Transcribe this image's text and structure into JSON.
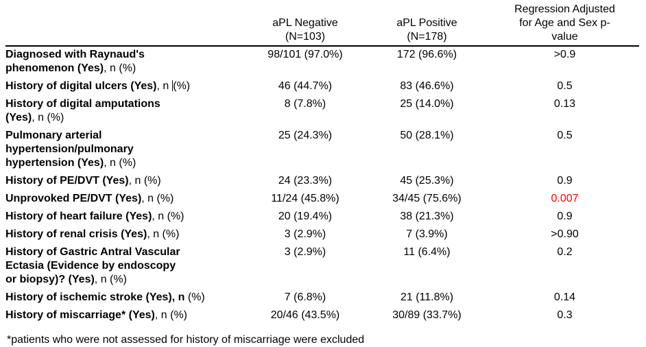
{
  "colors": {
    "text": "#000000",
    "p_significant": "#ff0000",
    "rule": "#000000"
  },
  "table": {
    "header": {
      "col1": "",
      "col2": "aPL Negative\n(N=103)",
      "col3": "aPL Positive\n(N=178)",
      "col4": "Regression Adjusted\nfor Age and Sex p-\nvalue"
    },
    "rows": [
      {
        "label_bold": "Diagnosed with Raynaud's\nphenomenon (Yes)",
        "label_tail": ", n (%)",
        "apl_negative": "98/101 (97.0%)",
        "apl_positive": "172 (96.6%)",
        "p_value": ">0.9",
        "significant": false
      },
      {
        "label_bold": "History of digital ulcers (Yes)",
        "label_tail": ", n ",
        "cursor": true,
        "label_tail2": "(%)",
        "apl_negative": "46 (44.7%)",
        "apl_positive": "83 (46.6%)",
        "p_value": "0.5",
        "significant": false
      },
      {
        "label_bold": "History of digital amputations\n(Yes)",
        "label_tail": ", n (%)",
        "apl_negative": "8 (7.8%)",
        "apl_positive": "25 (14.0%)",
        "p_value": "0.13",
        "significant": false
      },
      {
        "label_bold": "Pulmonary arterial\nhypertension/pulmonary\nhypertension (Yes)",
        "label_tail": ", n (%)",
        "apl_negative": "25 (24.3%)",
        "apl_positive": "50 (28.1%)",
        "p_value": "0.5",
        "significant": false
      },
      {
        "label_bold": "History of PE/DVT (Yes)",
        "label_tail": ", n (%)",
        "apl_negative": "24 (23.3%)",
        "apl_positive": "45 (25.3%)",
        "p_value": "0.9",
        "significant": false
      },
      {
        "label_bold": "Unprovoked PE/DVT (Yes)",
        "label_tail": ", n (%)",
        "apl_negative": "11/24 (45.8%)",
        "apl_positive": "34/45 (75.6%)",
        "p_value": "0.007",
        "significant": true
      },
      {
        "label_bold": "History of heart failure (Yes)",
        "label_tail": ", n (%)",
        "apl_negative": "20 (19.4%)",
        "apl_positive": "38 (21.3%)",
        "p_value": "0.9",
        "significant": false
      },
      {
        "label_bold": "History of renal crisis (Yes)",
        "label_tail": ", n (%)",
        "apl_negative": "3 (2.9%)",
        "apl_positive": "7 (3.9%)",
        "p_value": ">0.90",
        "significant": false
      },
      {
        "label_bold": "History of Gastric Antral Vascular\nEctasia (Evidence by endoscopy\nor biopsy)? (Yes)",
        "label_tail": ", n (%)",
        "apl_negative": "3 (2.9%)",
        "apl_positive": "11 (6.4%)",
        "p_value": "0.2",
        "significant": false
      },
      {
        "label_bold": "History of ischemic stroke (Yes), n",
        "label_tail": " (%)",
        "apl_negative": "7 (6.8%)",
        "apl_positive": "21 (11.8%)",
        "p_value": "0.14",
        "significant": false
      },
      {
        "label_bold": "History of miscarriage* (Yes)",
        "label_tail": ", n (%)",
        "apl_negative": "20/46 (43.5%)",
        "apl_positive": "30/89 (33.7%)",
        "p_value": "0.3",
        "significant": false
      }
    ]
  },
  "footnote": "*patients who were not assessed for history of miscarriage were excluded"
}
